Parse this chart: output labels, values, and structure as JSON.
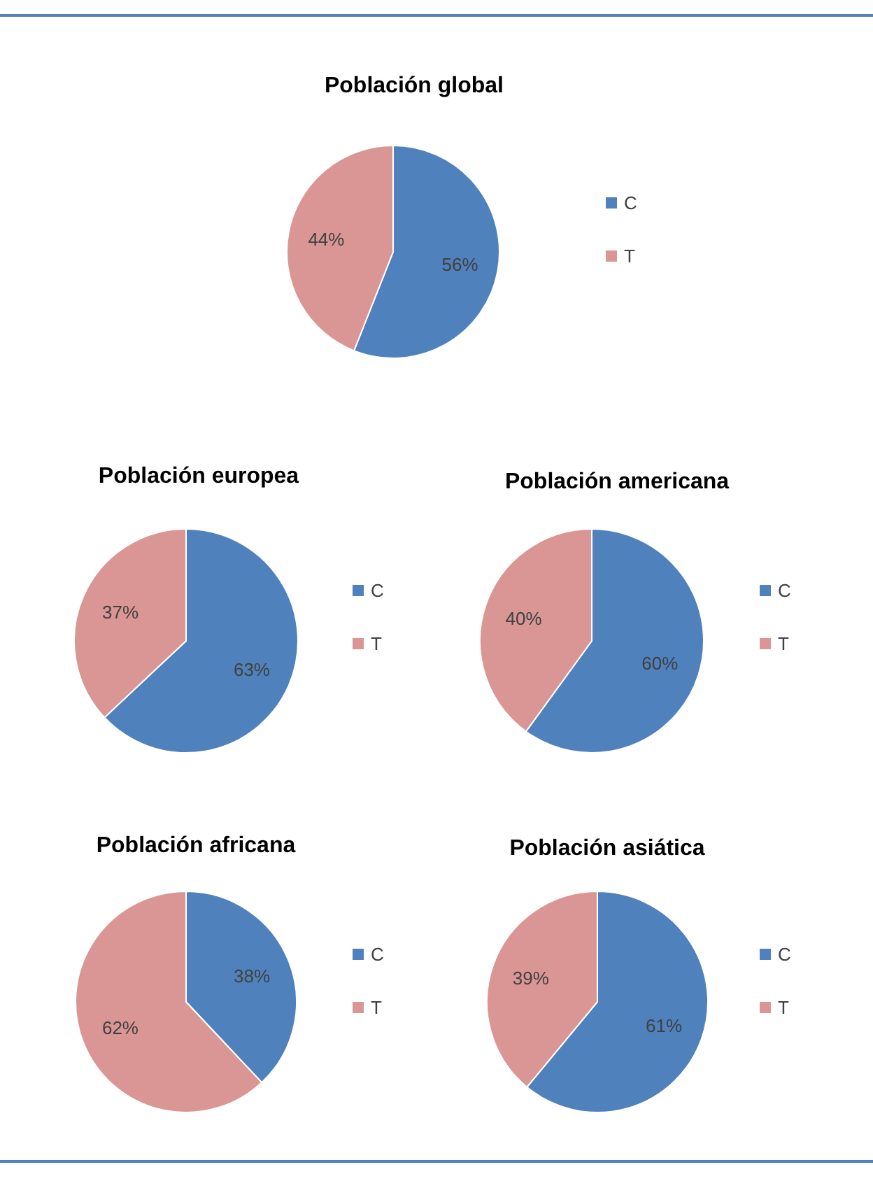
{
  "chart_data": [
    {
      "type": "pie",
      "title": "Población global",
      "categories": [
        "C",
        "T"
      ],
      "values": [
        56,
        44
      ],
      "value_labels": [
        "56%",
        "44%"
      ],
      "colors": [
        "#4f81bd",
        "#d99694"
      ],
      "legend": "right"
    },
    {
      "type": "pie",
      "title": "Población europea",
      "categories": [
        "C",
        "T"
      ],
      "values": [
        63,
        37
      ],
      "value_labels": [
        "63%",
        "37%"
      ],
      "colors": [
        "#4f81bd",
        "#d99694"
      ],
      "legend": "right"
    },
    {
      "type": "pie",
      "title": "Población americana",
      "categories": [
        "C",
        "T"
      ],
      "values": [
        60,
        40
      ],
      "value_labels": [
        "60%",
        "40%"
      ],
      "colors": [
        "#4f81bd",
        "#d99694"
      ],
      "legend": "right"
    },
    {
      "type": "pie",
      "title": "Población africana",
      "categories": [
        "C",
        "T"
      ],
      "values": [
        38,
        62
      ],
      "value_labels": [
        "38%",
        "62%"
      ],
      "colors": [
        "#4f81bd",
        "#d99694"
      ],
      "legend": "right"
    },
    {
      "type": "pie",
      "title": "Población asiática",
      "categories": [
        "C",
        "T"
      ],
      "values": [
        61,
        39
      ],
      "value_labels": [
        "61%",
        "39%"
      ],
      "colors": [
        "#4f81bd",
        "#d99694"
      ],
      "legend": "right"
    }
  ]
}
